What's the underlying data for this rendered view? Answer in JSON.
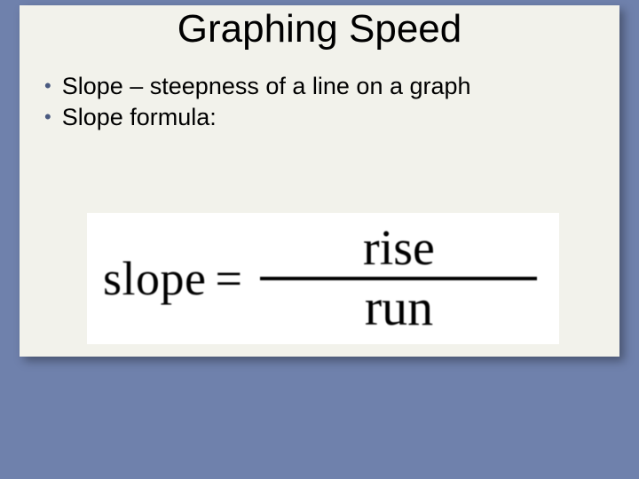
{
  "slide": {
    "background": "#6f81ac",
    "box_background": "#f2f2eb",
    "title": "Graphing Speed",
    "title_fontsize": 44,
    "bullets": [
      "Slope – steepness of a line on a graph",
      "Slope formula:"
    ],
    "bullet_fontsize": 27,
    "bullet_marker_color": "#4a5a80",
    "formula": {
      "lhs": "slope",
      "equals": "=",
      "numerator": "rise",
      "denominator": "run",
      "font": "serif",
      "fontsize": 54,
      "bar_color": "#000000",
      "background": "#ffffff"
    }
  }
}
